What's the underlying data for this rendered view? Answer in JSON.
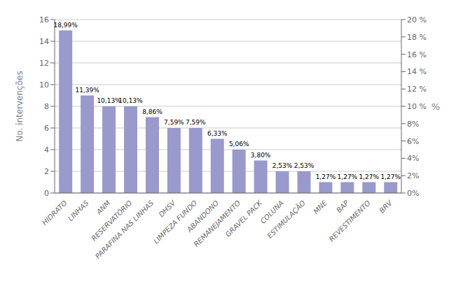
{
  "chart_data": {
    "type": "bar",
    "categories": [
      "HIDRATO",
      "LINHAS",
      "ANM",
      "RESERVATÓRIO",
      "PARAFINA NAS LINHAS",
      "DHSV",
      "LIMPEZA FUNDO",
      "ABANDONO",
      "REMANEJAMENTO",
      "GRAVEL PACK",
      "COLUNA",
      "ESTIMULAÇÃO",
      "MNE",
      "BAP",
      "REVESTIMENTO",
      "BRV"
    ],
    "values": [
      15,
      9,
      8,
      8,
      7,
      6,
      6,
      5,
      4,
      3,
      2,
      2,
      1,
      1,
      1,
      1
    ],
    "annotations": [
      "18,99%",
      "11,39%",
      "10,13%",
      "10,13%",
      "8,86%",
      "7,59%",
      "7,59%",
      "6,33%",
      "5,06%",
      "3,80%",
      "2,53%",
      "2,53%",
      "1,27%",
      "1,27%",
      "1,27%",
      "1,27%"
    ],
    "color": "#9999cc",
    "y_label": "No. intervenções",
    "y2_label": "%",
    "ylim": [
      0,
      16
    ],
    "yticks": [
      0,
      2,
      4,
      6,
      8,
      10,
      12,
      14,
      16
    ],
    "y2lim": [
      0,
      0.2
    ],
    "y2ticks": [
      {
        "value": 0.0,
        "label": "0%"
      },
      {
        "value": 0.02,
        "label": "2%"
      },
      {
        "value": 0.04,
        "label": "4%"
      },
      {
        "value": 0.06,
        "label": "6%"
      },
      {
        "value": 0.08,
        "label": "8%"
      },
      {
        "value": 0.1,
        "label": "10 %"
      },
      {
        "value": 0.12,
        "label": "12 %"
      },
      {
        "value": 0.14,
        "label": "14 %"
      },
      {
        "value": 0.16,
        "label": "16 %"
      },
      {
        "value": 0.18,
        "label": "18 %"
      },
      {
        "value": 0.2,
        "label": "20 %"
      }
    ],
    "grid": true
  }
}
